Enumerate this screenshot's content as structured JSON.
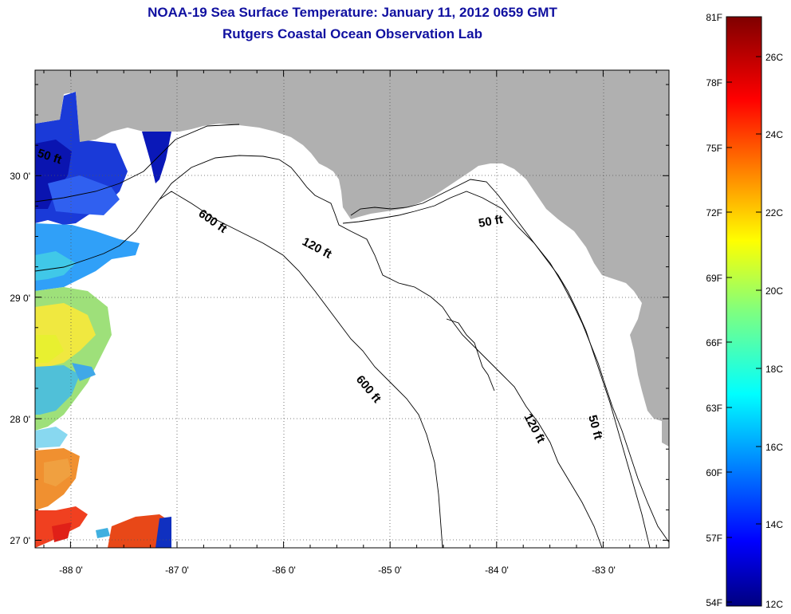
{
  "header": {
    "title": "NOAA-19 Sea Surface Temperature:  January 11, 2012 0659 GMT",
    "subtitle": "Rutgers Coastal Ocean Observation Lab"
  },
  "axes": {
    "x_ticks": [
      "-88 0'",
      "-87 0'",
      "-86 0'",
      "-85 0'",
      "-84 0'",
      "-83 0'"
    ],
    "y_ticks": [
      "30 0'",
      "29 0'",
      "28 0'",
      "27 0'"
    ]
  },
  "contours": [
    {
      "label": "50 ft"
    },
    {
      "label": "600 ft"
    },
    {
      "label": "120 ft"
    },
    {
      "label": "50 ft"
    },
    {
      "label": "600 ft"
    },
    {
      "label": "120 ft"
    },
    {
      "label": "50 ft"
    }
  ],
  "colorbar": {
    "fahrenheit": [
      "81F",
      "78F",
      "75F",
      "72F",
      "69F",
      "66F",
      "63F",
      "60F",
      "57F",
      "54F"
    ],
    "celsius": [
      "26C",
      "24C",
      "22C",
      "20C",
      "18C",
      "16C",
      "14C",
      "12C"
    ]
  },
  "colors": {
    "land": "#b0b0b0",
    "title": "#1010a0"
  }
}
